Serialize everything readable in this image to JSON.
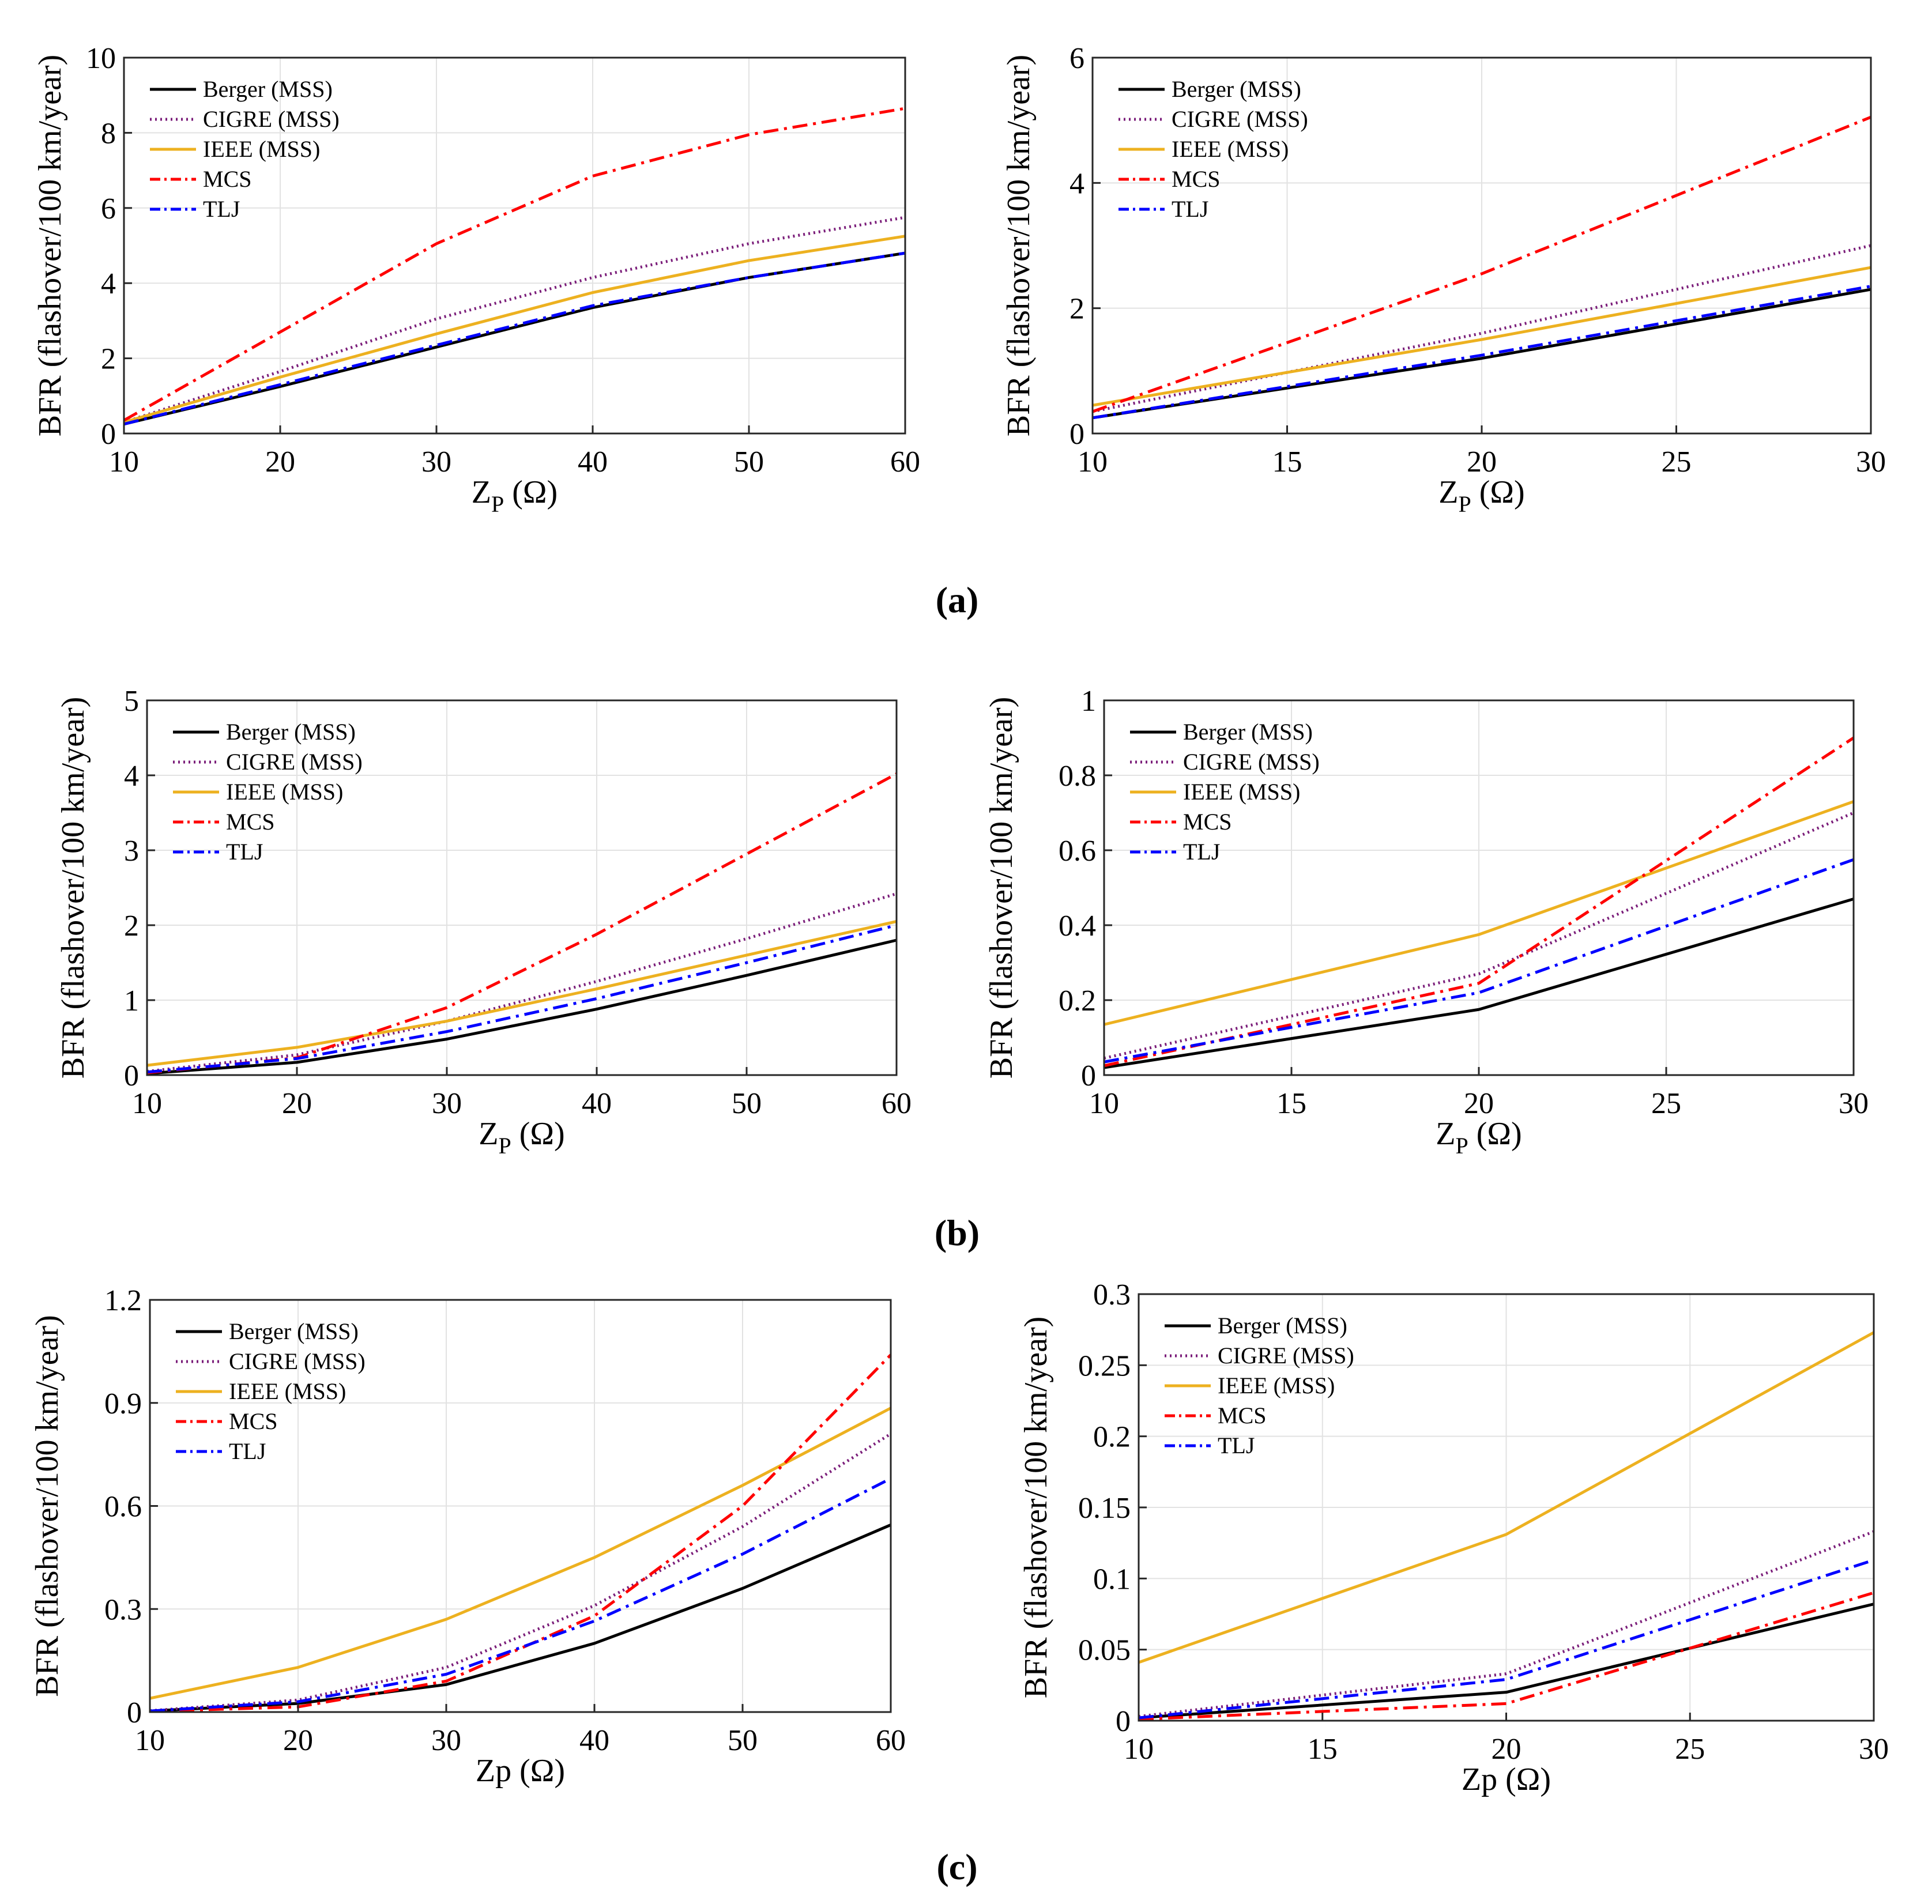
{
  "figure": {
    "panel_labels": [
      "(a)",
      "(b)",
      "(c)"
    ]
  },
  "series_styles": [
    {
      "name": "Berger (MSS)",
      "color": "#000000",
      "dash": "solid"
    },
    {
      "name": "CIGRE (MSS)",
      "color": "#7B1E7A",
      "dash": "dotted"
    },
    {
      "name": "IEEE (MSS)",
      "color": "#EDB120",
      "dash": "solid"
    },
    {
      "name": "MCS",
      "color": "#FF0000",
      "dash": "dashdot"
    },
    {
      "name": "TLJ",
      "color": "#0000FF",
      "dash": "dashdot"
    }
  ],
  "chart_data": [
    {
      "type": "line",
      "panel": "(a)",
      "side": "left",
      "xlabel_main": "Z",
      "xlabel_sub": "P",
      "xlabel_unit": " (Ω)",
      "ylabel": "BFR (flashover/100 km/year)",
      "xlim": [
        10,
        60
      ],
      "ylim": [
        0,
        10
      ],
      "xticks": [
        10,
        20,
        30,
        40,
        50,
        60
      ],
      "yticks": [
        0,
        2,
        4,
        6,
        8,
        10
      ],
      "ytick_labels": [
        "0",
        "2",
        "4",
        "6",
        "8",
        "10"
      ],
      "grid": true,
      "legend": "top-left",
      "x": [
        10,
        20,
        30,
        40,
        50,
        60
      ],
      "series": [
        {
          "name": "Berger (MSS)",
          "values": [
            0.25,
            1.25,
            2.3,
            3.35,
            4.15,
            4.8
          ]
        },
        {
          "name": "CIGRE (MSS)",
          "values": [
            0.3,
            1.65,
            3.05,
            4.15,
            5.05,
            5.75
          ]
        },
        {
          "name": "IEEE (MSS)",
          "values": [
            0.3,
            1.5,
            2.65,
            3.75,
            4.6,
            5.25
          ]
        },
        {
          "name": "MCS",
          "values": [
            0.35,
            2.7,
            5.05,
            6.85,
            7.95,
            8.65
          ]
        },
        {
          "name": "TLJ",
          "values": [
            0.25,
            1.3,
            2.35,
            3.4,
            4.15,
            4.8
          ]
        }
      ]
    },
    {
      "type": "line",
      "panel": "(a)",
      "side": "right",
      "xlabel_main": "Z",
      "xlabel_sub": "P",
      "xlabel_unit": " (Ω)",
      "ylabel": "BFR (flashover/100 km/year)",
      "xlim": [
        10,
        30
      ],
      "ylim": [
        0,
        6
      ],
      "xticks": [
        10,
        15,
        20,
        25,
        30
      ],
      "yticks": [
        0,
        2,
        4,
        6
      ],
      "ytick_labels": [
        "0",
        "2",
        "4",
        "6"
      ],
      "grid": true,
      "legend": "top-left",
      "x": [
        10,
        20,
        30
      ],
      "series": [
        {
          "name": "Berger (MSS)",
          "values": [
            0.25,
            1.2,
            2.3
          ]
        },
        {
          "name": "CIGRE (MSS)",
          "values": [
            0.35,
            1.6,
            3.0
          ]
        },
        {
          "name": "IEEE (MSS)",
          "values": [
            0.45,
            1.5,
            2.65
          ]
        },
        {
          "name": "MCS",
          "values": [
            0.35,
            2.55,
            5.05
          ]
        },
        {
          "name": "TLJ",
          "values": [
            0.25,
            1.25,
            2.35
          ]
        }
      ]
    },
    {
      "type": "line",
      "panel": "(b)",
      "side": "left",
      "xlabel_main": "Z",
      "xlabel_sub": "P",
      "xlabel_unit": " (Ω)",
      "ylabel": "BFR (flashover/100 km/year)",
      "xlim": [
        10,
        60
      ],
      "ylim": [
        0,
        5
      ],
      "xticks": [
        10,
        20,
        30,
        40,
        50,
        60
      ],
      "yticks": [
        0,
        1,
        2,
        3,
        4,
        5
      ],
      "ytick_labels": [
        "0",
        "1",
        "2",
        "3",
        "4",
        "5"
      ],
      "grid": true,
      "legend": "top-left",
      "x": [
        10,
        20,
        30,
        40,
        50,
        60
      ],
      "series": [
        {
          "name": "Berger (MSS)",
          "values": [
            0.02,
            0.17,
            0.48,
            0.88,
            1.33,
            1.8
          ]
        },
        {
          "name": "CIGRE (MSS)",
          "values": [
            0.05,
            0.27,
            0.72,
            1.25,
            1.82,
            2.42
          ]
        },
        {
          "name": "IEEE (MSS)",
          "values": [
            0.13,
            0.37,
            0.72,
            1.15,
            1.6,
            2.05
          ]
        },
        {
          "name": "MCS",
          "values": [
            0.03,
            0.23,
            0.9,
            1.88,
            2.95,
            4.02
          ]
        },
        {
          "name": "TLJ",
          "values": [
            0.04,
            0.22,
            0.58,
            1.02,
            1.5,
            2.0
          ]
        }
      ]
    },
    {
      "type": "line",
      "panel": "(b)",
      "side": "right",
      "xlabel_main": "Z",
      "xlabel_sub": "P",
      "xlabel_unit": " (Ω)",
      "ylabel": "BFR (flashover/100 km/year)",
      "xlim": [
        10,
        30
      ],
      "ylim": [
        0,
        1
      ],
      "xticks": [
        10,
        15,
        20,
        25,
        30
      ],
      "yticks": [
        0,
        0.2,
        0.4,
        0.6,
        0.8,
        1
      ],
      "ytick_labels": [
        "0",
        "0.2",
        "0.4",
        "0.6",
        "0.8",
        "1"
      ],
      "grid": true,
      "legend": "top-left",
      "x": [
        10,
        20,
        30
      ],
      "series": [
        {
          "name": "Berger (MSS)",
          "values": [
            0.02,
            0.175,
            0.47
          ]
        },
        {
          "name": "CIGRE (MSS)",
          "values": [
            0.045,
            0.27,
            0.7
          ]
        },
        {
          "name": "IEEE (MSS)",
          "values": [
            0.135,
            0.375,
            0.73
          ]
        },
        {
          "name": "MCS",
          "values": [
            0.025,
            0.245,
            0.9
          ]
        },
        {
          "name": "TLJ",
          "values": [
            0.035,
            0.22,
            0.575
          ]
        }
      ]
    },
    {
      "type": "line",
      "panel": "(c)",
      "side": "left",
      "xlabel_main": "Zp",
      "xlabel_sub": "",
      "xlabel_unit": " (Ω)",
      "ylabel": "BFR (flashover/100 km/year)",
      "xlim": [
        10,
        60
      ],
      "ylim": [
        0,
        1.2
      ],
      "xticks": [
        10,
        20,
        30,
        40,
        50,
        60
      ],
      "yticks": [
        0,
        0.3,
        0.6,
        0.9,
        1.2
      ],
      "ytick_labels": [
        "0",
        "0.3",
        "0.6",
        "0.9",
        "1.2"
      ],
      "grid": true,
      "legend": "top-left",
      "x": [
        10,
        20,
        30,
        40,
        50,
        60
      ],
      "series": [
        {
          "name": "Berger (MSS)",
          "values": [
            0.003,
            0.025,
            0.08,
            0.2,
            0.36,
            0.545
          ]
        },
        {
          "name": "CIGRE (MSS)",
          "values": [
            0.004,
            0.035,
            0.13,
            0.31,
            0.54,
            0.81
          ]
        },
        {
          "name": "IEEE (MSS)",
          "values": [
            0.04,
            0.13,
            0.27,
            0.45,
            0.66,
            0.885
          ]
        },
        {
          "name": "MCS",
          "values": [
            0.002,
            0.015,
            0.09,
            0.28,
            0.6,
            1.04
          ]
        },
        {
          "name": "TLJ",
          "values": [
            0.003,
            0.03,
            0.11,
            0.265,
            0.46,
            0.68
          ]
        }
      ]
    },
    {
      "type": "line",
      "panel": "(c)",
      "side": "right",
      "xlabel_main": "Zp",
      "xlabel_sub": "",
      "xlabel_unit": " (Ω)",
      "ylabel": "BFR (flashover/100 km/year)",
      "xlim": [
        10,
        30
      ],
      "ylim": [
        0,
        0.3
      ],
      "xticks": [
        10,
        15,
        20,
        25,
        30
      ],
      "yticks": [
        0,
        0.05,
        0.1,
        0.15,
        0.2,
        0.25,
        0.3
      ],
      "ytick_labels": [
        "0",
        "0.05",
        "0.1",
        "0.15",
        "0.2",
        "0.25",
        "0.3"
      ],
      "grid": true,
      "legend": "top-left",
      "x": [
        10,
        20,
        30
      ],
      "series": [
        {
          "name": "Berger (MSS)",
          "values": [
            0.002,
            0.02,
            0.082
          ]
        },
        {
          "name": "CIGRE (MSS)",
          "values": [
            0.003,
            0.033,
            0.133
          ]
        },
        {
          "name": "IEEE (MSS)",
          "values": [
            0.041,
            0.131,
            0.273
          ]
        },
        {
          "name": "MCS",
          "values": [
            0.001,
            0.012,
            0.09
          ]
        },
        {
          "name": "TLJ",
          "values": [
            0.002,
            0.029,
            0.113
          ]
        }
      ]
    }
  ]
}
